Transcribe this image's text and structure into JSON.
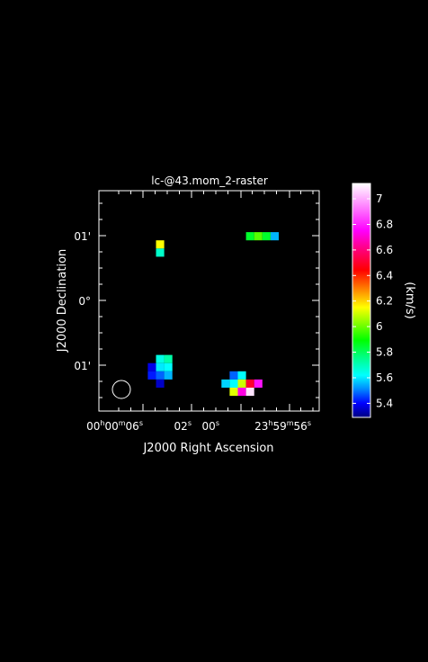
{
  "chart_data": {
    "type": "heatmap",
    "title": "lc-@43.mom_2-raster",
    "xlabel": "J2000 Right Ascension",
    "ylabel": "J2000 Declination",
    "x_ticks": [
      {
        "pre": "00",
        "s1": "h",
        "mid": "00",
        "s2": "m",
        "num": "06",
        "s3": "s"
      },
      {
        "pre": "",
        "s1": "",
        "mid": "",
        "s2": "",
        "num": "02",
        "s3": "s"
      },
      {
        "pre": "",
        "s1": "",
        "mid": "",
        "s2": "",
        "num": "00",
        "s3": "s"
      },
      {
        "pre": "23",
        "s1": "h",
        "mid": "59",
        "s2": "m",
        "num": "56",
        "s3": "s"
      }
    ],
    "y_ticks": [
      {
        "label": "01'"
      },
      {
        "label": "0°"
      },
      {
        "label": "01'"
      }
    ],
    "colorbar": {
      "label": "(km/s)",
      "min": 5.29,
      "max": 7.12,
      "ticks": [
        "7",
        "6.8",
        "6.6",
        "6.4",
        "6.2",
        "6",
        "5.8",
        "5.6",
        "5.4"
      ],
      "tick_values": [
        7.0,
        6.8,
        6.6,
        6.4,
        6.2,
        6.0,
        5.8,
        5.6,
        5.4
      ]
    },
    "beam": "circle",
    "grid": false,
    "pixels": [
      {
        "col": 5,
        "row": 2,
        "value": 6.15
      },
      {
        "col": 5,
        "row": 3,
        "value": 5.68
      },
      {
        "col": 16,
        "row": 1,
        "value": 5.85
      },
      {
        "col": 17,
        "row": 1,
        "value": 5.98
      },
      {
        "col": 18,
        "row": 1,
        "value": 5.85
      },
      {
        "col": 19,
        "row": 1,
        "value": 5.55
      },
      {
        "col": 5,
        "row": 16,
        "value": 5.65
      },
      {
        "col": 6,
        "row": 16,
        "value": 5.72
      },
      {
        "col": 4,
        "row": 17,
        "value": 5.38
      },
      {
        "col": 5,
        "row": 17,
        "value": 5.6
      },
      {
        "col": 6,
        "row": 17,
        "value": 5.62
      },
      {
        "col": 4,
        "row": 18,
        "value": 5.42
      },
      {
        "col": 5,
        "row": 18,
        "value": 5.48
      },
      {
        "col": 6,
        "row": 18,
        "value": 5.55
      },
      {
        "col": 5,
        "row": 19,
        "value": 5.35
      },
      {
        "col": 14,
        "row": 18,
        "value": 5.48
      },
      {
        "col": 15,
        "row": 18,
        "value": 5.62
      },
      {
        "col": 13,
        "row": 19,
        "value": 5.58
      },
      {
        "col": 14,
        "row": 19,
        "value": 5.62
      },
      {
        "col": 15,
        "row": 19,
        "value": 6.1
      },
      {
        "col": 16,
        "row": 19,
        "value": 6.5
      },
      {
        "col": 17,
        "row": 19,
        "value": 6.78
      },
      {
        "col": 14,
        "row": 20,
        "value": 6.12
      },
      {
        "col": 15,
        "row": 20,
        "value": 6.72
      },
      {
        "col": 16,
        "row": 20,
        "value": 7.08
      }
    ]
  }
}
